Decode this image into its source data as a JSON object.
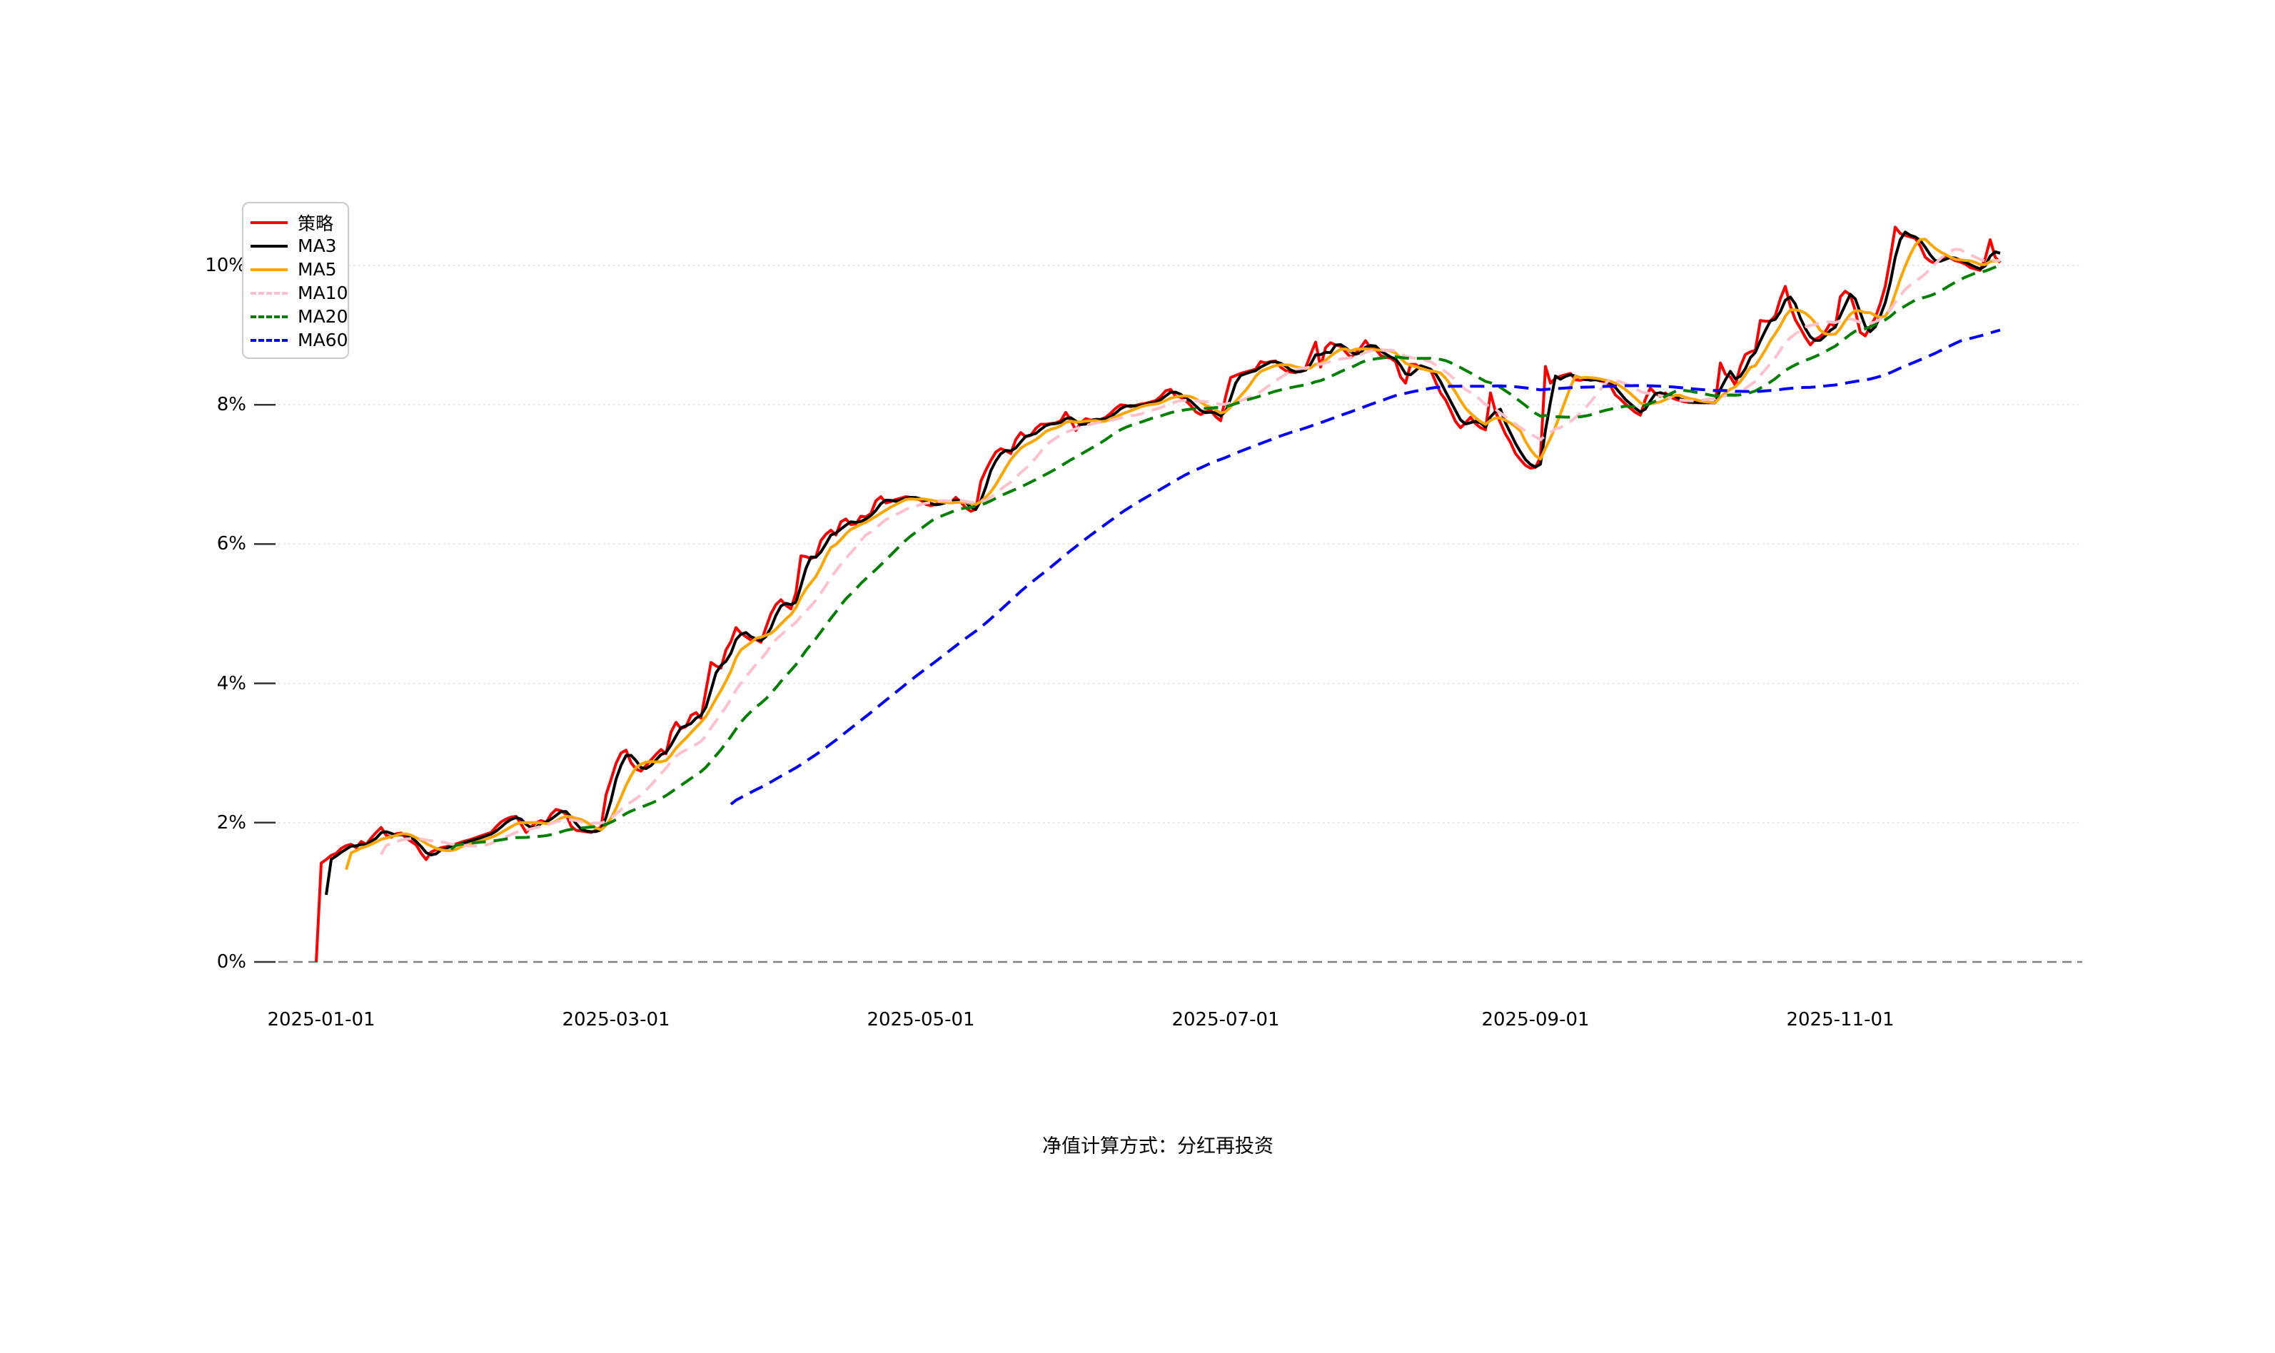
{
  "chart_data": {
    "type": "line",
    "title": "",
    "caption": "净值计算方式：分红再投资",
    "grid": "horizontal-dotted",
    "legend_position": "upper-left",
    "start_date": "2024-12-31",
    "ylim": [
      0,
      11
    ],
    "y_ticks": [
      {
        "value": 10,
        "label": "10%"
      },
      {
        "value": 8,
        "label": "8%"
      },
      {
        "value": 6,
        "label": "6%"
      },
      {
        "value": 4,
        "label": "4%"
      },
      {
        "value": 2,
        "label": "2%"
      },
      {
        "value": 0,
        "label": "0%"
      }
    ],
    "x_ticks": [
      {
        "date": "2025-01-01",
        "label": "2025-01-01"
      },
      {
        "date": "2025-03-01",
        "label": "2025-03-01"
      },
      {
        "date": "2025-05-01",
        "label": "2025-05-01"
      },
      {
        "date": "2025-07-01",
        "label": "2025-07-01"
      },
      {
        "date": "2025-09-01",
        "label": "2025-09-01"
      },
      {
        "date": "2025-11-01",
        "label": "2025-11-01"
      }
    ],
    "series": [
      {
        "name": "策略",
        "color": "#ff0000",
        "style": "solid",
        "window": 1
      },
      {
        "name": "MA3",
        "color": "#000000",
        "style": "solid",
        "window": 3
      },
      {
        "name": "MA5",
        "color": "#ffa500",
        "style": "solid",
        "window": 5
      },
      {
        "name": "MA10",
        "color": "#ffc0cb",
        "style": "dashed",
        "window": 10
      },
      {
        "name": "MA20",
        "color": "#008000",
        "style": "dashed",
        "window": 20
      },
      {
        "name": "MA60",
        "color": "#0000ff",
        "style": "dashed",
        "window": 60
      }
    ],
    "zero_line_color": "#808080",
    "grid_color": "#e3e3e3",
    "strategy_points": [
      [
        0,
        0
      ],
      [
        1,
        1.42
      ],
      [
        2,
        1.47
      ],
      [
        3,
        1.53
      ],
      [
        4,
        1.56
      ],
      [
        5,
        1.63
      ],
      [
        6,
        1.67
      ],
      [
        7,
        1.69
      ],
      [
        8,
        1.64
      ],
      [
        9,
        1.73
      ],
      [
        10,
        1.69
      ],
      [
        11,
        1.78
      ],
      [
        12,
        1.86
      ],
      [
        13,
        1.93
      ],
      [
        14,
        1.82
      ],
      [
        15,
        1.79
      ],
      [
        16,
        1.84
      ],
      [
        17,
        1.85
      ],
      [
        18,
        1.78
      ],
      [
        19,
        1.73
      ],
      [
        20,
        1.68
      ],
      [
        21,
        1.56
      ],
      [
        22,
        1.47
      ],
      [
        23,
        1.58
      ],
      [
        24,
        1.61
      ],
      [
        25,
        1.64
      ],
      [
        27,
        1.67
      ],
      [
        29,
        1.72
      ],
      [
        31,
        1.76
      ],
      [
        33,
        1.81
      ],
      [
        35,
        1.86
      ],
      [
        36,
        1.94
      ],
      [
        37,
        2.01
      ],
      [
        38,
        2.05
      ],
      [
        39,
        2.08
      ],
      [
        40,
        2.09
      ],
      [
        41,
        1.98
      ],
      [
        42,
        1.86
      ],
      [
        43,
        1.94
      ],
      [
        44,
        2.0
      ],
      [
        45,
        2.03
      ],
      [
        46,
        2.0
      ],
      [
        47,
        2.12
      ],
      [
        48,
        2.19
      ],
      [
        49,
        2.17
      ],
      [
        50,
        2.12
      ],
      [
        51,
        1.95
      ],
      [
        52,
        1.89
      ],
      [
        53,
        1.88
      ],
      [
        54,
        1.87
      ],
      [
        55,
        1.86
      ],
      [
        56,
        1.89
      ],
      [
        57,
        1.94
      ],
      [
        58,
        2.4
      ],
      [
        59,
        2.62
      ],
      [
        60,
        2.85
      ],
      [
        61,
        3.0
      ],
      [
        62,
        3.04
      ],
      [
        63,
        2.86
      ],
      [
        64,
        2.77
      ],
      [
        65,
        2.74
      ],
      [
        66,
        2.82
      ],
      [
        67,
        2.9
      ],
      [
        68,
        2.98
      ],
      [
        69,
        3.05
      ],
      [
        70,
        2.99
      ],
      [
        71,
        3.3
      ],
      [
        72,
        3.44
      ],
      [
        73,
        3.35
      ],
      [
        74,
        3.38
      ],
      [
        75,
        3.54
      ],
      [
        76,
        3.58
      ],
      [
        77,
        3.5
      ],
      [
        78,
        3.9
      ],
      [
        79,
        4.3
      ],
      [
        80,
        4.25
      ],
      [
        81,
        4.22
      ],
      [
        82,
        4.48
      ],
      [
        83,
        4.6
      ],
      [
        84,
        4.8
      ],
      [
        85,
        4.72
      ],
      [
        86,
        4.67
      ],
      [
        87,
        4.62
      ],
      [
        88,
        4.63
      ],
      [
        89,
        4.59
      ],
      [
        90,
        4.8
      ],
      [
        91,
        5.0
      ],
      [
        92,
        5.13
      ],
      [
        93,
        5.2
      ],
      [
        94,
        5.12
      ],
      [
        95,
        5.07
      ],
      [
        96,
        5.3
      ],
      [
        97,
        5.83
      ],
      [
        98,
        5.82
      ],
      [
        99,
        5.79
      ],
      [
        100,
        5.82
      ],
      [
        101,
        6.05
      ],
      [
        102,
        6.14
      ],
      [
        103,
        6.2
      ],
      [
        104,
        6.13
      ],
      [
        105,
        6.32
      ],
      [
        106,
        6.36
      ],
      [
        107,
        6.28
      ],
      [
        108,
        6.29
      ],
      [
        109,
        6.4
      ],
      [
        110,
        6.39
      ],
      [
        111,
        6.44
      ],
      [
        112,
        6.62
      ],
      [
        113,
        6.68
      ],
      [
        114,
        6.59
      ],
      [
        115,
        6.61
      ],
      [
        116,
        6.64
      ],
      [
        117,
        6.66
      ],
      [
        118,
        6.68
      ],
      [
        119,
        6.67
      ],
      [
        120,
        6.65
      ],
      [
        121,
        6.63
      ],
      [
        122,
        6.57
      ],
      [
        123,
        6.55
      ],
      [
        124,
        6.57
      ],
      [
        125,
        6.6
      ],
      [
        126,
        6.62
      ],
      [
        127,
        6.6
      ],
      [
        128,
        6.67
      ],
      [
        129,
        6.6
      ],
      [
        130,
        6.52
      ],
      [
        131,
        6.47
      ],
      [
        132,
        6.5
      ],
      [
        133,
        6.9
      ],
      [
        134,
        7.06
      ],
      [
        135,
        7.2
      ],
      [
        136,
        7.32
      ],
      [
        137,
        7.37
      ],
      [
        138,
        7.34
      ],
      [
        139,
        7.3
      ],
      [
        140,
        7.5
      ],
      [
        141,
        7.6
      ],
      [
        142,
        7.54
      ],
      [
        143,
        7.56
      ],
      [
        144,
        7.66
      ],
      [
        145,
        7.72
      ],
      [
        146,
        7.72
      ],
      [
        147,
        7.73
      ],
      [
        148,
        7.74
      ],
      [
        149,
        7.77
      ],
      [
        150,
        7.89
      ],
      [
        151,
        7.78
      ],
      [
        152,
        7.63
      ],
      [
        153,
        7.74
      ],
      [
        154,
        7.8
      ],
      [
        155,
        7.78
      ],
      [
        156,
        7.79
      ],
      [
        157,
        7.79
      ],
      [
        158,
        7.82
      ],
      [
        159,
        7.88
      ],
      [
        160,
        7.95
      ],
      [
        161,
        8.0
      ],
      [
        162,
        7.99
      ],
      [
        163,
        7.97
      ],
      [
        164,
        7.99
      ],
      [
        165,
        8.01
      ],
      [
        166,
        8.02
      ],
      [
        167,
        8.04
      ],
      [
        168,
        8.06
      ],
      [
        169,
        8.12
      ],
      [
        170,
        8.2
      ],
      [
        171,
        8.22
      ],
      [
        172,
        8.12
      ],
      [
        173,
        8.11
      ],
      [
        174,
        8.06
      ],
      [
        175,
        7.99
      ],
      [
        176,
        7.9
      ],
      [
        177,
        7.86
      ],
      [
        178,
        7.9
      ],
      [
        179,
        7.92
      ],
      [
        180,
        7.83
      ],
      [
        181,
        7.77
      ],
      [
        182,
        8.12
      ],
      [
        183,
        8.39
      ],
      [
        184,
        8.42
      ],
      [
        185,
        8.45
      ],
      [
        186,
        8.47
      ],
      [
        187,
        8.49
      ],
      [
        188,
        8.51
      ],
      [
        189,
        8.62
      ],
      [
        190,
        8.6
      ],
      [
        191,
        8.62
      ],
      [
        192,
        8.63
      ],
      [
        193,
        8.54
      ],
      [
        194,
        8.49
      ],
      [
        195,
        8.47
      ],
      [
        196,
        8.46
      ],
      [
        197,
        8.5
      ],
      [
        198,
        8.53
      ],
      [
        199,
        8.72
      ],
      [
        200,
        8.9
      ],
      [
        201,
        8.54
      ],
      [
        202,
        8.82
      ],
      [
        203,
        8.89
      ],
      [
        204,
        8.86
      ],
      [
        205,
        8.84
      ],
      [
        206,
        8.76
      ],
      [
        207,
        8.68
      ],
      [
        208,
        8.74
      ],
      [
        209,
        8.82
      ],
      [
        210,
        8.92
      ],
      [
        211,
        8.81
      ],
      [
        212,
        8.8
      ],
      [
        213,
        8.71
      ],
      [
        214,
        8.68
      ],
      [
        215,
        8.67
      ],
      [
        216,
        8.62
      ],
      [
        217,
        8.4
      ],
      [
        218,
        8.31
      ],
      [
        219,
        8.58
      ],
      [
        220,
        8.58
      ],
      [
        221,
        8.52
      ],
      [
        222,
        8.51
      ],
      [
        223,
        8.5
      ],
      [
        224,
        8.33
      ],
      [
        225,
        8.17
      ],
      [
        226,
        8.07
      ],
      [
        227,
        7.92
      ],
      [
        228,
        7.76
      ],
      [
        229,
        7.67
      ],
      [
        230,
        7.74
      ],
      [
        231,
        7.82
      ],
      [
        232,
        7.73
      ],
      [
        233,
        7.67
      ],
      [
        234,
        7.64
      ],
      [
        235,
        8.17
      ],
      [
        236,
        7.9
      ],
      [
        237,
        7.74
      ],
      [
        238,
        7.58
      ],
      [
        239,
        7.46
      ],
      [
        240,
        7.3
      ],
      [
        241,
        7.21
      ],
      [
        242,
        7.13
      ],
      [
        243,
        7.09
      ],
      [
        244,
        7.1
      ],
      [
        245,
        7.25
      ],
      [
        246,
        8.55
      ],
      [
        247,
        8.31
      ],
      [
        248,
        8.38
      ],
      [
        249,
        8.41
      ],
      [
        250,
        8.43
      ],
      [
        251,
        8.45
      ],
      [
        252,
        8.36
      ],
      [
        253,
        8.35
      ],
      [
        254,
        8.37
      ],
      [
        255,
        8.35
      ],
      [
        256,
        8.36
      ],
      [
        257,
        8.34
      ],
      [
        258,
        8.33
      ],
      [
        259,
        8.27
      ],
      [
        260,
        8.14
      ],
      [
        261,
        8.08
      ],
      [
        262,
        8.01
      ],
      [
        263,
        7.95
      ],
      [
        264,
        7.89
      ],
      [
        265,
        7.85
      ],
      [
        266,
        8.08
      ],
      [
        267,
        8.24
      ],
      [
        268,
        8.16
      ],
      [
        269,
        8.12
      ],
      [
        270,
        8.17
      ],
      [
        271,
        8.11
      ],
      [
        272,
        8.08
      ],
      [
        273,
        8.06
      ],
      [
        274,
        8.04
      ],
      [
        275,
        8.03
      ],
      [
        280,
        8.03
      ],
      [
        281,
        8.6
      ],
      [
        282,
        8.44
      ],
      [
        283,
        8.4
      ],
      [
        284,
        8.28
      ],
      [
        285,
        8.55
      ],
      [
        286,
        8.72
      ],
      [
        287,
        8.76
      ],
      [
        288,
        8.78
      ],
      [
        289,
        9.21
      ],
      [
        290,
        9.2
      ],
      [
        291,
        9.2
      ],
      [
        292,
        9.28
      ],
      [
        293,
        9.52
      ],
      [
        294,
        9.7
      ],
      [
        295,
        9.42
      ],
      [
        296,
        9.22
      ],
      [
        297,
        9.1
      ],
      [
        298,
        8.97
      ],
      [
        299,
        8.86
      ],
      [
        300,
        8.94
      ],
      [
        301,
        8.98
      ],
      [
        302,
        9.05
      ],
      [
        303,
        9.17
      ],
      [
        304,
        9.12
      ],
      [
        305,
        9.55
      ],
      [
        306,
        9.63
      ],
      [
        307,
        9.58
      ],
      [
        308,
        9.35
      ],
      [
        309,
        9.04
      ],
      [
        310,
        8.99
      ],
      [
        311,
        9.12
      ],
      [
        312,
        9.25
      ],
      [
        313,
        9.45
      ],
      [
        314,
        9.7
      ],
      [
        315,
        10.1
      ],
      [
        316,
        10.55
      ],
      [
        317,
        10.46
      ],
      [
        318,
        10.43
      ],
      [
        319,
        10.41
      ],
      [
        320,
        10.39
      ],
      [
        321,
        10.28
      ],
      [
        322,
        10.12
      ],
      [
        323,
        10.06
      ],
      [
        324,
        10.03
      ],
      [
        325,
        10.09
      ],
      [
        326,
        10.14
      ],
      [
        327,
        10.11
      ],
      [
        328,
        10.07
      ],
      [
        329,
        10.05
      ],
      [
        330,
        10.02
      ],
      [
        331,
        9.97
      ],
      [
        332,
        9.95
      ],
      [
        333,
        9.93
      ],
      [
        334,
        10.1
      ],
      [
        335,
        10.37
      ],
      [
        336,
        10.12
      ],
      [
        337,
        10.04
      ]
    ]
  }
}
